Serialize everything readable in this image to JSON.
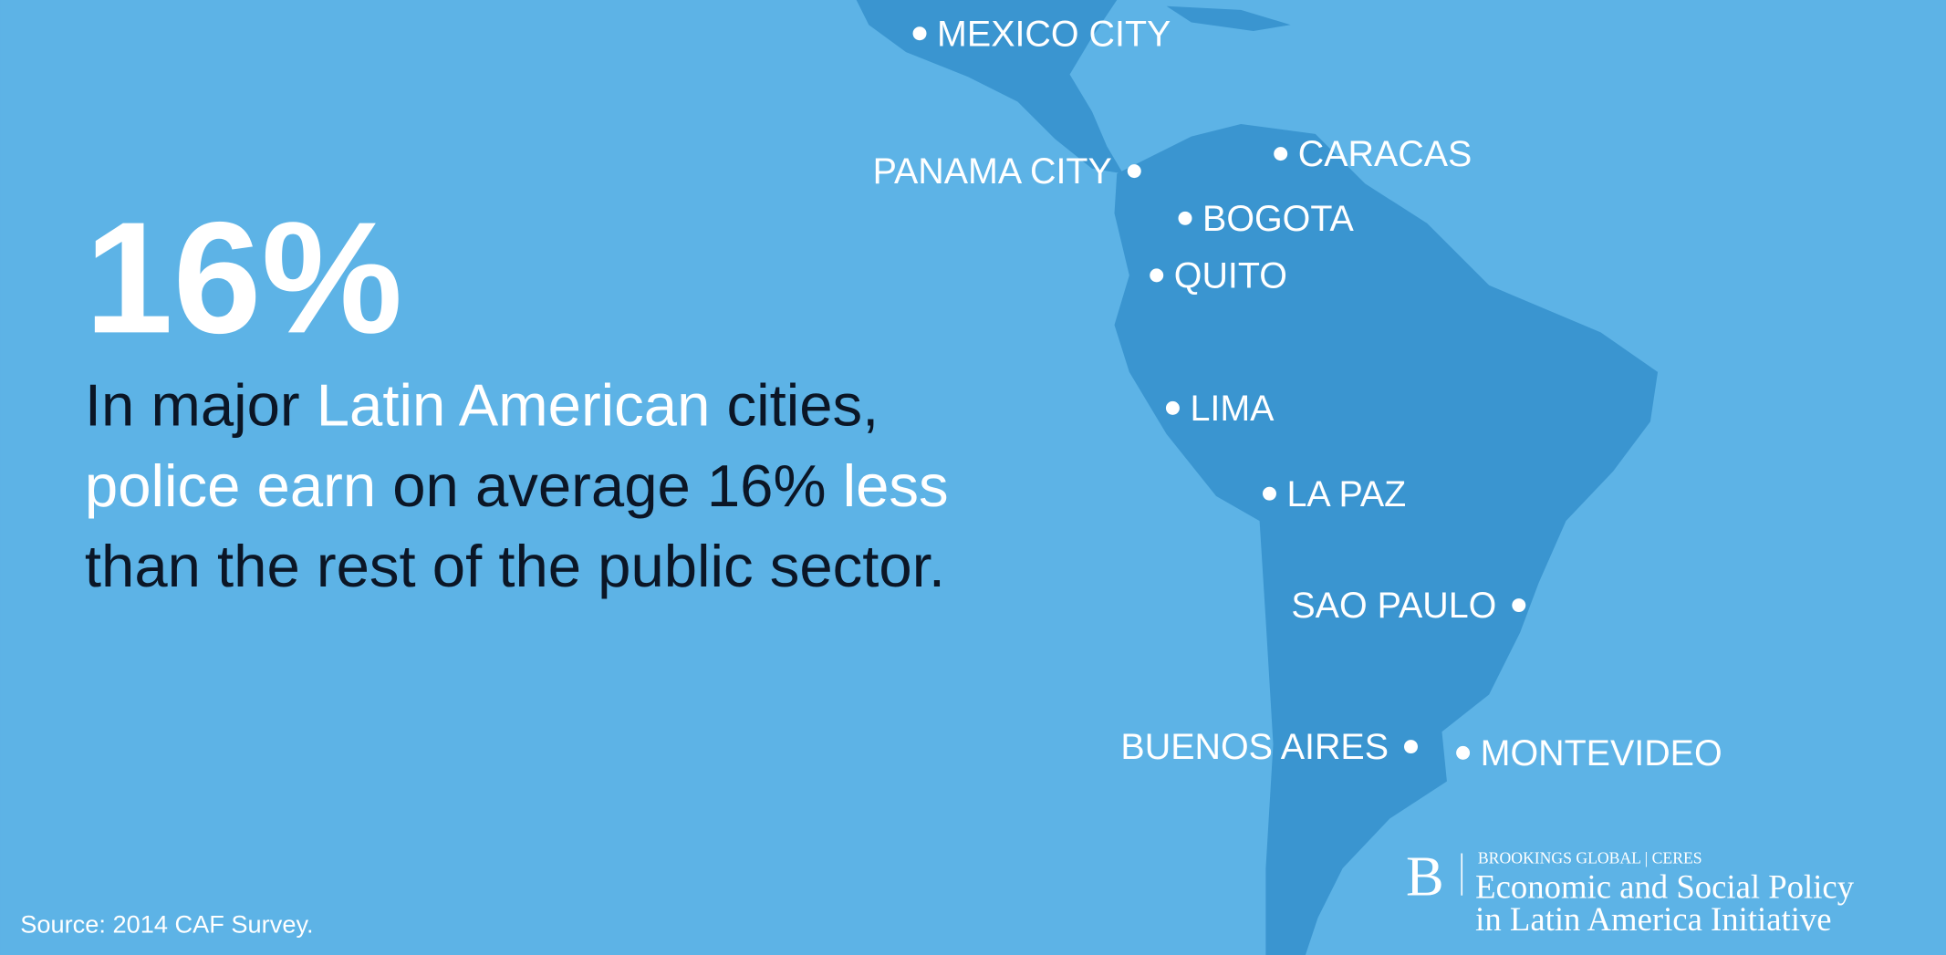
{
  "headline": "16%",
  "statement": {
    "lines": [
      [
        {
          "text": "In major ",
          "highlight": false
        },
        {
          "text": "Latin American",
          "highlight": true
        },
        {
          "text": " cities,",
          "highlight": false
        }
      ],
      [
        {
          "text": "police earn",
          "highlight": true
        },
        {
          "text": " on average 16% ",
          "highlight": false
        },
        {
          "text": "less",
          "highlight": true
        }
      ],
      [
        {
          "text": "than the rest of the public sector.",
          "highlight": false
        }
      ]
    ]
  },
  "cities": [
    "MEXICO CITY",
    "PANAMA CITY",
    "CARACAS",
    "BOGOTA",
    "QUITO",
    "LIMA",
    "LA PAZ",
    "SAO PAULO",
    "BUENOS AIRES",
    "MONTEVIDEO"
  ],
  "source": "Source: 2014 CAF Survey.",
  "logo": {
    "mark": "B",
    "org": "BROOKINGS GLOBAL | CERES",
    "line1": "Economic and Social Policy",
    "line2": "in Latin America Initiative"
  }
}
